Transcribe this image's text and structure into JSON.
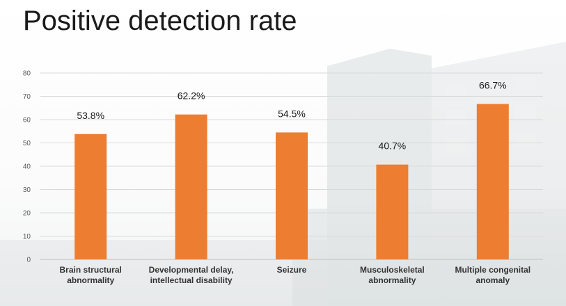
{
  "slide": {
    "title": "Positive detection rate"
  },
  "colors": {
    "bar": "#ED7D31",
    "grid": "#d9d9d9",
    "axis": "#bfbfbf"
  },
  "chart_data": {
    "type": "bar",
    "title": "Positive detection rate",
    "categories": [
      [
        "Brain structural",
        "abnormality"
      ],
      [
        "Developmental delay,",
        "intellectual disability"
      ],
      [
        "Seizure"
      ],
      [
        "Musculoskeletal",
        "abnormality"
      ],
      [
        "Multiple congenital",
        "anomaly"
      ]
    ],
    "values": [
      53.8,
      62.2,
      54.5,
      40.7,
      66.7
    ],
    "data_labels": [
      "53.8%",
      "62.2%",
      "54.5%",
      "40.7%",
      "66.7%"
    ],
    "ylim": [
      0,
      80
    ],
    "yticks": [
      0,
      10,
      20,
      30,
      40,
      50,
      60,
      70,
      80
    ],
    "grid": true,
    "legend": "none"
  }
}
